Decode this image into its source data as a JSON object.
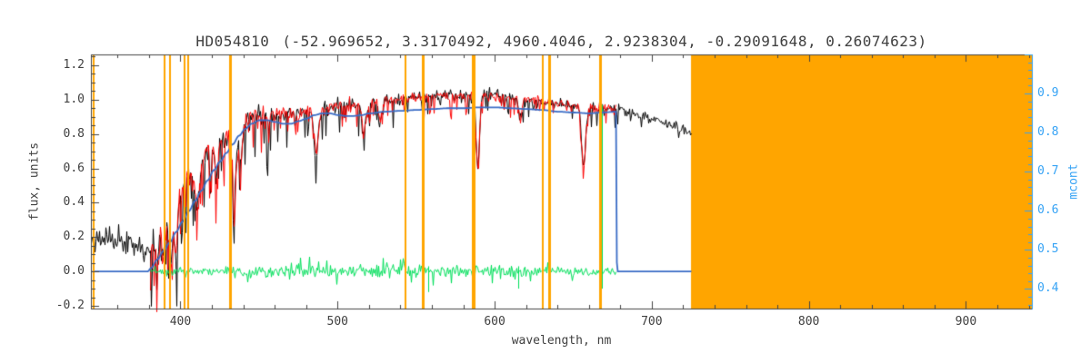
{
  "title": {
    "star": "HD054810",
    "params": "(-52.969652, 3.3170492, 4960.4046, 2.9238304, -0.29091648, 0.26074623)"
  },
  "axes": {
    "x": {
      "label": "wavelength, nm",
      "range": [
        343,
        942
      ],
      "tick_values": [
        400,
        500,
        600,
        700,
        800,
        900
      ],
      "tick_labels": [
        "400",
        "500",
        "600",
        "700",
        "800",
        "900"
      ],
      "minor_step": 20
    },
    "y_left": {
      "label": "flux, units",
      "range": [
        -0.216,
        1.263
      ],
      "tick_values": [
        1.2,
        1.0,
        0.8,
        0.6,
        0.4,
        0.2,
        0.0,
        -0.2
      ],
      "tick_labels": [
        "1.2",
        "1.0",
        "0.8",
        "0.6",
        "0.4",
        "0.2",
        "0.0",
        "-0.2"
      ],
      "minor_step": 0.05
    },
    "y_right": {
      "label": "mcont",
      "range": [
        0.35,
        1.0
      ],
      "tick_values": [
        0.9,
        0.8,
        0.7,
        0.6,
        0.5,
        0.4
      ],
      "tick_labels": [
        "0.9",
        "0.8",
        "0.7",
        "0.6",
        "0.5",
        "0.4"
      ],
      "minor_step": 0.02
    }
  },
  "colors": {
    "background": "#ffffff",
    "frame": "#444444",
    "text": "#404040",
    "orange": "#ffa500",
    "observed": "#000000",
    "fit": "#fe0000",
    "residual": "#00e05a",
    "continuum": "#3a6cc6",
    "right_axis": "#36a3f5"
  },
  "chart_data": {
    "type": "line",
    "title": "HD054810 (-52.969652, 3.3170492, 4960.4046, 2.9238304, -0.29091648, 0.26074623)",
    "xlabel": "wavelength, nm",
    "ylabel_left": "flux, units",
    "ylabel_right": "mcont",
    "x_range": [
      343,
      942
    ],
    "flux_range": [
      -0.216,
      1.263
    ],
    "mcont_range": [
      0.35,
      1.0
    ],
    "grid": false,
    "legend": false,
    "absorption_lines": [
      {
        "c": 385.0,
        "d": 0.18,
        "sig": 1.2
      },
      {
        "c": 388.9,
        "d": 0.22,
        "sig": 1.3
      },
      {
        "c": 393.37,
        "d": 0.38,
        "sig": 1.5
      },
      {
        "c": 396.85,
        "d": 0.36,
        "sig": 1.5
      },
      {
        "c": 410.17,
        "d": 0.22,
        "sig": 1.8
      },
      {
        "c": 422.67,
        "d": 0.18,
        "sig": 1.4
      },
      {
        "c": 434.05,
        "d": 0.3,
        "sig": 1.8
      },
      {
        "c": 438.3,
        "d": 0.18,
        "sig": 1.5
      },
      {
        "c": 486.13,
        "d": 0.25,
        "sig": 1.8
      },
      {
        "c": 516.7,
        "d": 0.16,
        "sig": 2.0
      },
      {
        "c": 527.0,
        "d": 0.12,
        "sig": 1.5
      },
      {
        "c": 589.0,
        "d": 0.42,
        "sig": 1.5
      },
      {
        "c": 616.2,
        "d": 0.12,
        "sig": 1.5
      },
      {
        "c": 656.28,
        "d": 0.35,
        "sig": 1.8
      }
    ],
    "series": [
      {
        "name": "observed-spectrum",
        "color_key": "observed",
        "seed": 11,
        "range": [
          343.5,
          725
        ],
        "use_lines": true,
        "symmetric": false,
        "width": 1,
        "envelope": [
          [
            345,
            0.18
          ],
          [
            352,
            0.2
          ],
          [
            358,
            0.17
          ],
          [
            364,
            0.19
          ],
          [
            370,
            0.16
          ],
          [
            374,
            0.15
          ],
          [
            377,
            0.1
          ],
          [
            380,
            0.13
          ],
          [
            383,
            0.2
          ],
          [
            386,
            0.26
          ],
          [
            390,
            0.33
          ],
          [
            394,
            0.4
          ],
          [
            398,
            0.47
          ],
          [
            402,
            0.52
          ],
          [
            406,
            0.56
          ],
          [
            410,
            0.6
          ],
          [
            414,
            0.65
          ],
          [
            418,
            0.7
          ],
          [
            422,
            0.73
          ],
          [
            426,
            0.76
          ],
          [
            430,
            0.78
          ],
          [
            434,
            0.79
          ],
          [
            438,
            0.83
          ],
          [
            442,
            0.88
          ],
          [
            446,
            0.91
          ],
          [
            450,
            0.93
          ],
          [
            456,
            0.92
          ],
          [
            462,
            0.91
          ],
          [
            468,
            0.91
          ],
          [
            474,
            0.92
          ],
          [
            480,
            0.93
          ],
          [
            486,
            0.93
          ],
          [
            492,
            0.95
          ],
          [
            500,
            0.96
          ],
          [
            508,
            0.97
          ],
          [
            516,
            0.98
          ],
          [
            524,
            0.99
          ],
          [
            532,
            1.0
          ],
          [
            540,
            1.0
          ],
          [
            548,
            1.01
          ],
          [
            556,
            1.02
          ],
          [
            564,
            1.02
          ],
          [
            572,
            1.02
          ],
          [
            580,
            1.03
          ],
          [
            588,
            1.03
          ],
          [
            596,
            1.03
          ],
          [
            604,
            1.02
          ],
          [
            612,
            1.01
          ],
          [
            620,
            1.0
          ],
          [
            628,
            0.99
          ],
          [
            636,
            0.98
          ],
          [
            644,
            0.98
          ],
          [
            652,
            0.97
          ],
          [
            660,
            0.96
          ],
          [
            668,
            0.95
          ],
          [
            676,
            0.94
          ],
          [
            684,
            0.93
          ],
          [
            692,
            0.91
          ],
          [
            700,
            0.89
          ],
          [
            708,
            0.87
          ],
          [
            716,
            0.84
          ],
          [
            725,
            0.8
          ]
        ],
        "noise": [
          [
            343,
            380,
            0.04,
            0.15,
            0.1
          ],
          [
            380,
            400,
            0.03,
            0.5,
            0.4
          ],
          [
            400,
            460,
            0.026,
            0.45,
            0.35
          ],
          [
            460,
            520,
            0.02,
            0.3,
            0.16
          ],
          [
            520,
            620,
            0.018,
            0.28,
            0.15
          ],
          [
            620,
            690,
            0.016,
            0.22,
            0.12
          ],
          [
            690,
            726,
            0.015,
            0.12,
            0.06
          ]
        ]
      },
      {
        "name": "fitted-spectrum",
        "color_key": "fit",
        "seed": 77,
        "range": [
          380.5,
          677
        ],
        "use_lines": true,
        "symmetric": false,
        "width": 1,
        "envelope": [
          [
            380,
            0.12
          ],
          [
            385,
            0.24
          ],
          [
            390,
            0.33
          ],
          [
            395,
            0.42
          ],
          [
            400,
            0.5
          ],
          [
            405,
            0.56
          ],
          [
            410,
            0.6
          ],
          [
            415,
            0.66
          ],
          [
            420,
            0.72
          ],
          [
            425,
            0.75
          ],
          [
            430,
            0.78
          ],
          [
            435,
            0.8
          ],
          [
            440,
            0.86
          ],
          [
            445,
            0.9
          ],
          [
            450,
            0.93
          ],
          [
            460,
            0.91
          ],
          [
            470,
            0.91
          ],
          [
            480,
            0.93
          ],
          [
            490,
            0.95
          ],
          [
            500,
            0.96
          ],
          [
            510,
            0.97
          ],
          [
            520,
            0.99
          ],
          [
            530,
            1.0
          ],
          [
            540,
            1.0
          ],
          [
            550,
            1.01
          ],
          [
            560,
            1.02
          ],
          [
            570,
            1.02
          ],
          [
            580,
            1.03
          ],
          [
            590,
            1.03
          ],
          [
            600,
            1.02
          ],
          [
            610,
            1.01
          ],
          [
            620,
            1.0
          ],
          [
            630,
            0.99
          ],
          [
            640,
            0.98
          ],
          [
            650,
            0.97
          ],
          [
            660,
            0.96
          ],
          [
            668,
            0.95
          ],
          [
            677,
            0.94
          ]
        ],
        "noise": [
          [
            380,
            400,
            0.028,
            0.45,
            0.32
          ],
          [
            400,
            460,
            0.024,
            0.4,
            0.28
          ],
          [
            460,
            520,
            0.018,
            0.28,
            0.13
          ],
          [
            520,
            620,
            0.016,
            0.26,
            0.12
          ],
          [
            620,
            678,
            0.015,
            0.2,
            0.1
          ]
        ]
      },
      {
        "name": "residuals",
        "color_key": "residual",
        "seed": 1234,
        "range": [
          380.5,
          677
        ],
        "use_lines": false,
        "symmetric": true,
        "width": 1,
        "envelope": [
          [
            380,
            0.0
          ],
          [
            677,
            0.0
          ]
        ],
        "noise": [
          [
            380,
            430,
            0.012,
            0.2,
            0.05
          ],
          [
            430,
            500,
            0.015,
            0.25,
            0.07
          ],
          [
            500,
            620,
            0.018,
            0.28,
            0.08
          ],
          [
            620,
            678,
            0.014,
            0.2,
            0.06
          ]
        ],
        "spikes": [
          {
            "x": 668.3,
            "top": 0.97,
            "bottom": -0.1
          },
          {
            "x": 557.7,
            "top": 0.03,
            "bottom": -0.12
          },
          {
            "x": 615.0,
            "top": 0.03,
            "bottom": -0.1
          }
        ]
      },
      {
        "name": "continuum-mcont",
        "color_key": "continuum",
        "width": 1.8,
        "range": [
          343.5,
          725
        ],
        "points": [
          [
            343,
            0.0
          ],
          [
            379,
            0.0
          ],
          [
            381,
            0.02
          ],
          [
            385,
            0.07
          ],
          [
            389,
            0.12
          ],
          [
            393,
            0.17
          ],
          [
            397,
            0.23
          ],
          [
            401,
            0.29
          ],
          [
            405,
            0.35
          ],
          [
            409,
            0.41
          ],
          [
            413,
            0.47
          ],
          [
            417,
            0.53
          ],
          [
            421,
            0.59
          ],
          [
            425,
            0.64
          ],
          [
            429,
            0.69
          ],
          [
            433,
            0.74
          ],
          [
            437,
            0.79
          ],
          [
            441,
            0.83
          ],
          [
            445,
            0.86
          ],
          [
            450,
            0.88
          ],
          [
            455,
            0.88
          ],
          [
            460,
            0.87
          ],
          [
            465,
            0.86
          ],
          [
            470,
            0.86
          ],
          [
            475,
            0.875
          ],
          [
            480,
            0.89
          ],
          [
            485,
            0.91
          ],
          [
            490,
            0.92
          ],
          [
            495,
            0.92
          ],
          [
            500,
            0.91
          ],
          [
            505,
            0.905
          ],
          [
            510,
            0.905
          ],
          [
            515,
            0.91
          ],
          [
            520,
            0.92
          ],
          [
            530,
            0.93
          ],
          [
            540,
            0.935
          ],
          [
            550,
            0.94
          ],
          [
            560,
            0.945
          ],
          [
            570,
            0.95
          ],
          [
            580,
            0.95
          ],
          [
            590,
            0.955
          ],
          [
            600,
            0.955
          ],
          [
            610,
            0.95
          ],
          [
            620,
            0.945
          ],
          [
            630,
            0.94
          ],
          [
            640,
            0.93
          ],
          [
            650,
            0.925
          ],
          [
            660,
            0.92
          ],
          [
            668,
            0.925
          ],
          [
            677,
            0.93
          ],
          [
            677.6,
            0.0
          ],
          [
            725,
            0.0
          ]
        ]
      }
    ],
    "masked_lines": [
      {
        "nm": 344.7,
        "px": 2
      },
      {
        "nm": 389.9,
        "px": 2
      },
      {
        "nm": 393.4,
        "px": 2
      },
      {
        "nm": 402.6,
        "px": 2
      },
      {
        "nm": 404.9,
        "px": 2
      },
      {
        "nm": 432.1,
        "px": 3
      },
      {
        "nm": 543.2,
        "px": 2
      },
      {
        "nm": 554.8,
        "px": 3
      },
      {
        "nm": 586.6,
        "px": 4
      },
      {
        "nm": 630.6,
        "px": 2
      },
      {
        "nm": 635.2,
        "px": 3
      },
      {
        "nm": 667.1,
        "px": 3
      }
    ],
    "masked_band": [
      725,
      942
    ]
  }
}
